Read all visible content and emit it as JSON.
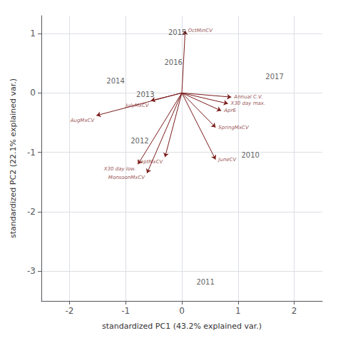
{
  "chart_data": {
    "type": "biplot",
    "xlabel": "standardized PC1 (43.2% explained var.)",
    "ylabel": "standardized PC2 (22.1% explained var.)",
    "xlim": [
      -2.5,
      2.5
    ],
    "ylim": [
      -3.5,
      1.3
    ],
    "xticks": [
      -2,
      -1,
      0,
      1,
      2
    ],
    "yticks": [
      -3,
      -2,
      -1,
      0,
      1
    ],
    "grid": true,
    "vectors": {
      "color": "#7B1C1C",
      "labels": [
        "Annual C.V.",
        "X30 day max.",
        "Apr6",
        "SpringMxCV",
        "OctMinCV",
        "JulyMxCV",
        "AugMxCV",
        "SeptMxCV",
        "MonsoonMxCV",
        "X30 day low.",
        "JuneCV"
      ],
      "x": [
        0.88,
        0.82,
        0.7,
        0.6,
        0.06,
        -0.55,
        -1.52,
        -0.3,
        -0.62,
        -0.78,
        0.6
      ],
      "y": [
        -0.07,
        -0.18,
        -0.3,
        -0.58,
        1.05,
        -0.13,
        -0.38,
        -1.08,
        -1.35,
        -1.2,
        -1.12
      ]
    },
    "scores": {
      "color": "#333333",
      "labels": [
        "2015",
        "2016",
        "2014",
        "2013",
        "2012",
        "2017",
        "2010",
        "2011"
      ],
      "x": [
        -0.08,
        -0.15,
        -1.18,
        -0.65,
        -0.75,
        1.65,
        1.22,
        0.42
      ],
      "y": [
        1.02,
        0.52,
        0.2,
        -0.02,
        -0.8,
        0.28,
        -1.05,
        -3.18
      ]
    }
  }
}
